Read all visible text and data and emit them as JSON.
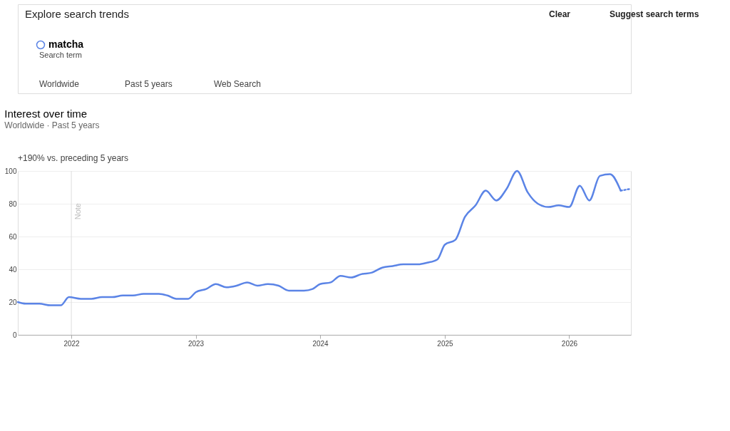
{
  "chart_data": {
    "type": "line",
    "title": "Interest over time",
    "subtitle": "Worldwide · Past 5 years",
    "annotations": [
      "Explore search trends",
      "Clear",
      "Suggest search terms",
      "Search term",
      "Worldwide",
      "Past 5 years",
      "Web Search",
      "+190% vs. preceding 5 years"
    ],
    "series": [
      {
        "name": "matcha",
        "color": "#5b84e6",
        "x": [
          "2021-07-28",
          "2021-08-20",
          "2021-09-29",
          "2021-11-01",
          "2021-12-01",
          "2021-12-25",
          "2022-01-29",
          "2022-03-01",
          "2022-04-01",
          "2022-05-01",
          "2022-06-01",
          "2022-07-01",
          "2022-08-01",
          "2022-09-15",
          "2022-10-10",
          "2022-11-05",
          "2022-12-10",
          "2023-01-01",
          "2023-02-01",
          "2023-03-01",
          "2023-04-01",
          "2023-05-01",
          "2023-06-01",
          "2023-07-01",
          "2023-08-01",
          "2023-09-01",
          "2023-10-01",
          "2023-11-15",
          "2023-12-10",
          "2024-01-01",
          "2024-02-01",
          "2024-03-01",
          "2024-04-01",
          "2024-05-01",
          "2024-06-01",
          "2024-07-01",
          "2024-08-01",
          "2024-09-01",
          "2024-10-15",
          "2024-11-10",
          "2024-12-10",
          "2025-01-01",
          "2025-02-01",
          "2025-03-01",
          "2025-04-01",
          "2025-05-01",
          "2025-06-01",
          "2025-07-01",
          "2025-08-01",
          "2025-09-01",
          "2025-10-01",
          "2025-11-01",
          "2025-12-01",
          "2026-01-01",
          "2026-02-01",
          "2026-03-01",
          "2026-04-01",
          "2026-05-01",
          "2026-06-01"
        ],
        "values": [
          20,
          19,
          19,
          18,
          18,
          23,
          22,
          22,
          23,
          23,
          24,
          24,
          25,
          25,
          24,
          22,
          22,
          26,
          28,
          31,
          29,
          30,
          32,
          30,
          31,
          30,
          27,
          27,
          28,
          31,
          32,
          36,
          35,
          37,
          38,
          41,
          42,
          43,
          43,
          44,
          46,
          55,
          58,
          72,
          79,
          88,
          82,
          89,
          100,
          87,
          80,
          78,
          79,
          78,
          91,
          82,
          97,
          98,
          88
        ]
      },
      {
        "color": "#5b84e6",
        "line_style": "dotted",
        "x": [
          "2026-06-01",
          "2026-06-28"
        ],
        "values": [
          88,
          89
        ]
      }
    ],
    "xlim": [
      "2021-07-28",
      "2026-07-01"
    ],
    "xticks": [
      {
        "value": "2022-01-01",
        "label": "2022"
      },
      {
        "value": "2023-01-01",
        "label": "2023"
      },
      {
        "value": "2024-01-01",
        "label": "2024"
      },
      {
        "value": "2025-01-01",
        "label": "2025"
      },
      {
        "value": "2026-01-01",
        "label": "2026"
      }
    ],
    "ylim": [
      0,
      100
    ],
    "yticks": [
      0,
      20,
      40,
      60,
      80,
      100
    ],
    "ref_lines": [
      {
        "axis": "x",
        "value": "2022-01-01",
        "label": "Note",
        "color": "#dddddd"
      }
    ],
    "grid": "y",
    "legend": "top left",
    "line_style": "solid",
    "marker": "none"
  }
}
